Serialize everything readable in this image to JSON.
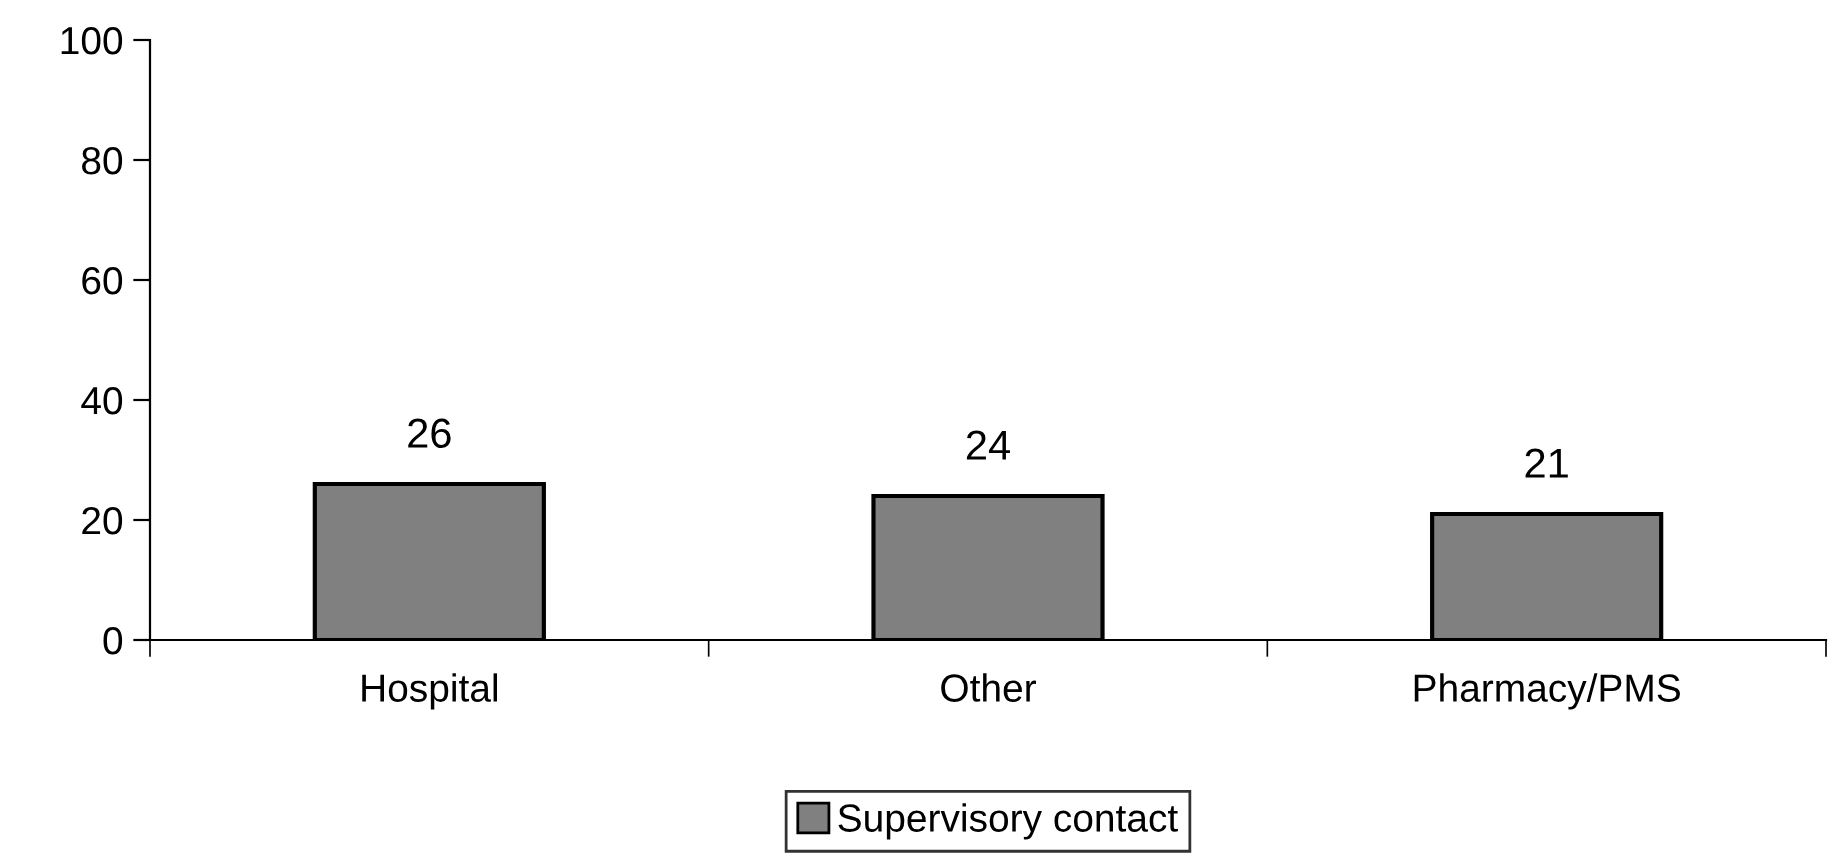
{
  "chart_data": {
    "type": "bar",
    "categories": [
      "Hospital",
      "Other",
      "Pharmacy/PMS"
    ],
    "series": [
      {
        "name": "Supervisory contact",
        "color": "#808080",
        "values": [
          26,
          24,
          21
        ]
      }
    ],
    "ylim": [
      0,
      100
    ],
    "yticks": [
      0,
      20,
      40,
      60,
      80,
      100
    ],
    "data_labels": true,
    "legend": "bottom",
    "grid": false
  }
}
